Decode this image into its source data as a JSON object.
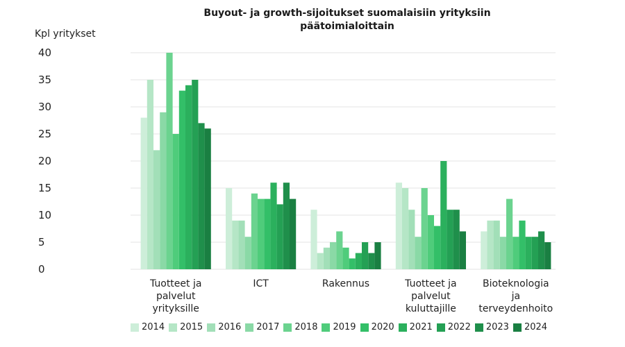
{
  "chart_data": {
    "type": "bar",
    "title_lines": [
      "Buyout- ja growth-sijoitukset suomalaisiin yrityksiin",
      "päätoimialoittain"
    ],
    "ylabel": "Kpl yritykset",
    "ylim": [
      0,
      40
    ],
    "yticks": [
      0,
      5,
      10,
      15,
      20,
      25,
      30,
      35,
      40
    ],
    "grid": true,
    "legend_position": "bottom",
    "categories": [
      [
        "Tuotteet ja",
        "palvelut",
        "yrityksille"
      ],
      [
        "ICT"
      ],
      [
        "Rakennus"
      ],
      [
        "Tuotteet ja",
        "palvelut",
        "kuluttajille"
      ],
      [
        "Bioteknologia",
        "ja",
        "terveydenhoito"
      ]
    ],
    "series": [
      {
        "name": "2014",
        "color": "#cdeed9",
        "values": [
          28,
          15,
          11,
          16,
          7
        ]
      },
      {
        "name": "2015",
        "color": "#b5e6c6",
        "values": [
          35,
          9,
          3,
          15,
          9
        ]
      },
      {
        "name": "2016",
        "color": "#a2dfb8",
        "values": [
          22,
          9,
          4,
          11,
          9
        ]
      },
      {
        "name": "2017",
        "color": "#8ad9a6",
        "values": [
          29,
          6,
          5,
          6,
          6
        ]
      },
      {
        "name": "2018",
        "color": "#6bd38f",
        "values": [
          40,
          14,
          7,
          15,
          13
        ]
      },
      {
        "name": "2019",
        "color": "#4fcc7b",
        "values": [
          25,
          13,
          4,
          10,
          6
        ]
      },
      {
        "name": "2020",
        "color": "#33bf68",
        "values": [
          33,
          13,
          2,
          8,
          9
        ]
      },
      {
        "name": "2021",
        "color": "#2bb05d",
        "values": [
          34,
          16,
          3,
          20,
          6
        ]
      },
      {
        "name": "2022",
        "color": "#24a054",
        "values": [
          35,
          12,
          5,
          11,
          6
        ]
      },
      {
        "name": "2023",
        "color": "#1f8f4b",
        "values": [
          27,
          16,
          3,
          11,
          7
        ]
      },
      {
        "name": "2024",
        "color": "#1a7f42",
        "values": [
          26,
          13,
          5,
          7,
          5
        ]
      }
    ]
  }
}
